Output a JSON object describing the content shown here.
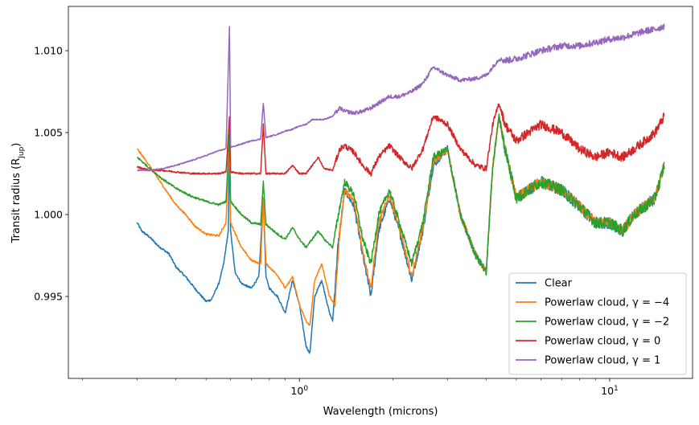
{
  "chart_data": {
    "type": "line",
    "xlabel": "Wavelength (microns)",
    "ylabel_main": "Transit radius (R",
    "ylabel_sub": "Jup",
    "ylabel_close": ")",
    "xscale": "log",
    "xlim": [
      0.18,
      18.5
    ],
    "ylim": [
      0.99,
      1.0127
    ],
    "x_tick_labels": [
      {
        "value": 1,
        "base": "10",
        "exp": "0"
      },
      {
        "value": 10,
        "base": "10",
        "exp": "1"
      }
    ],
    "y_ticks": [
      0.995,
      1.0,
      1.005,
      1.01
    ],
    "y_tick_labels": [
      "0.995",
      "1.000",
      "1.005",
      "1.010"
    ],
    "grid": false,
    "legend_position": "bottom-right",
    "series": [
      {
        "name": "Clear",
        "color": "#1f77b4",
        "noise": 0.00018,
        "points": [
          [
            0.3,
            0.9995
          ],
          [
            0.31,
            0.999
          ],
          [
            0.33,
            0.9986
          ],
          [
            0.35,
            0.9981
          ],
          [
            0.38,
            0.9976
          ],
          [
            0.4,
            0.9968
          ],
          [
            0.43,
            0.9962
          ],
          [
            0.46,
            0.9955
          ],
          [
            0.5,
            0.9947
          ],
          [
            0.52,
            0.9948
          ],
          [
            0.55,
            0.9958
          ],
          [
            0.57,
            0.997
          ],
          [
            0.59,
            0.999
          ],
          [
            0.595,
            1.004
          ],
          [
            0.6,
            0.999
          ],
          [
            0.62,
            0.9965
          ],
          [
            0.65,
            0.9958
          ],
          [
            0.7,
            0.9955
          ],
          [
            0.74,
            0.9962
          ],
          [
            0.765,
            1.001
          ],
          [
            0.78,
            0.9962
          ],
          [
            0.8,
            0.9955
          ],
          [
            0.85,
            0.995
          ],
          [
            0.9,
            0.994
          ],
          [
            0.95,
            0.996
          ],
          [
            1.0,
            0.9945
          ],
          [
            1.05,
            0.992
          ],
          [
            1.08,
            0.9915
          ],
          [
            1.12,
            0.995
          ],
          [
            1.18,
            0.996
          ],
          [
            1.25,
            0.994
          ],
          [
            1.28,
            0.9935
          ],
          [
            1.33,
            0.998
          ],
          [
            1.4,
            1.0015
          ],
          [
            1.5,
            1.0005
          ],
          [
            1.6,
            0.9975
          ],
          [
            1.7,
            0.995
          ],
          [
            1.8,
            0.999
          ],
          [
            1.95,
            1.001
          ],
          [
            2.1,
            0.999
          ],
          [
            2.3,
            0.996
          ],
          [
            2.5,
            0.999
          ],
          [
            2.7,
            1.003
          ],
          [
            3.0,
            1.004
          ],
          [
            3.3,
            1.0
          ],
          [
            3.7,
            0.9975
          ],
          [
            4.0,
            0.9965
          ],
          [
            4.2,
            1.003
          ],
          [
            4.4,
            1.006
          ],
          [
            4.6,
            1.004
          ],
          [
            5.0,
            1.001
          ],
          [
            6.0,
            1.002
          ],
          [
            7.0,
            1.0015
          ],
          [
            8.0,
            1.0005
          ],
          [
            9.0,
            0.9995
          ],
          [
            10.0,
            0.9995
          ],
          [
            11.0,
            0.999
          ],
          [
            12.0,
            1.0
          ],
          [
            13.0,
            1.0005
          ],
          [
            14.0,
            1.001
          ],
          [
            15.0,
            1.003
          ]
        ]
      },
      {
        "name": "Powerlaw cloud, γ = −4",
        "color": "#ff7f0e",
        "noise": 0.00016,
        "points": [
          [
            0.3,
            1.004
          ],
          [
            0.32,
            1.0033
          ],
          [
            0.35,
            1.0022
          ],
          [
            0.38,
            1.0012
          ],
          [
            0.4,
            1.0006
          ],
          [
            0.43,
            1.0
          ],
          [
            0.46,
            0.9993
          ],
          [
            0.5,
            0.9988
          ],
          [
            0.55,
            0.9987
          ],
          [
            0.58,
            0.9995
          ],
          [
            0.595,
            1.0045
          ],
          [
            0.6,
            0.9995
          ],
          [
            0.65,
            0.998
          ],
          [
            0.7,
            0.9972
          ],
          [
            0.75,
            0.997
          ],
          [
            0.765,
            1.001
          ],
          [
            0.78,
            0.997
          ],
          [
            0.85,
            0.9963
          ],
          [
            0.9,
            0.9955
          ],
          [
            0.95,
            0.9962
          ],
          [
            1.0,
            0.9945
          ],
          [
            1.05,
            0.9935
          ],
          [
            1.08,
            0.9932
          ],
          [
            1.12,
            0.996
          ],
          [
            1.18,
            0.997
          ],
          [
            1.25,
            0.995
          ],
          [
            1.3,
            0.9945
          ],
          [
            1.35,
            0.999
          ],
          [
            1.4,
            1.0015
          ],
          [
            1.5,
            1.0008
          ],
          [
            1.6,
            0.9978
          ],
          [
            1.7,
            0.9955
          ],
          [
            1.8,
            0.9995
          ],
          [
            1.95,
            1.0012
          ],
          [
            2.1,
            0.9992
          ],
          [
            2.3,
            0.9962
          ],
          [
            2.5,
            0.9992
          ],
          [
            2.7,
            1.0032
          ],
          [
            3.0,
            1.004
          ],
          [
            3.3,
            1.0
          ],
          [
            3.7,
            0.9975
          ],
          [
            4.0,
            0.9965
          ],
          [
            4.2,
            1.003
          ],
          [
            4.4,
            1.006
          ],
          [
            4.6,
            1.004
          ],
          [
            5.0,
            1.001
          ],
          [
            6.0,
            1.002
          ],
          [
            7.0,
            1.0015
          ],
          [
            8.0,
            1.0005
          ],
          [
            9.0,
            0.9995
          ],
          [
            10.0,
            0.9995
          ],
          [
            11.0,
            0.999
          ],
          [
            12.0,
            1.0
          ],
          [
            13.0,
            1.0005
          ],
          [
            14.0,
            1.001
          ],
          [
            15.0,
            1.003
          ]
        ]
      },
      {
        "name": "Powerlaw cloud, γ = −2",
        "color": "#2ca02c",
        "noise": 0.00018,
        "points": [
          [
            0.3,
            1.0035
          ],
          [
            0.33,
            1.0028
          ],
          [
            0.36,
            1.0022
          ],
          [
            0.4,
            1.0016
          ],
          [
            0.45,
            1.0011
          ],
          [
            0.5,
            1.0008
          ],
          [
            0.55,
            1.0006
          ],
          [
            0.58,
            1.0008
          ],
          [
            0.595,
            1.005
          ],
          [
            0.6,
            1.0008
          ],
          [
            0.65,
            1.0
          ],
          [
            0.7,
            0.9995
          ],
          [
            0.75,
            0.9994
          ],
          [
            0.765,
            1.002
          ],
          [
            0.78,
            0.9994
          ],
          [
            0.85,
            0.9988
          ],
          [
            0.9,
            0.9985
          ],
          [
            0.95,
            0.9992
          ],
          [
            1.0,
            0.9985
          ],
          [
            1.05,
            0.998
          ],
          [
            1.1,
            0.9985
          ],
          [
            1.15,
            0.999
          ],
          [
            1.2,
            0.9985
          ],
          [
            1.28,
            0.998
          ],
          [
            1.35,
            1.0005
          ],
          [
            1.4,
            1.002
          ],
          [
            1.5,
            1.0012
          ],
          [
            1.6,
            0.9985
          ],
          [
            1.7,
            0.997
          ],
          [
            1.8,
            1.0
          ],
          [
            1.95,
            1.0015
          ],
          [
            2.1,
            0.9995
          ],
          [
            2.3,
            0.997
          ],
          [
            2.5,
            0.9995
          ],
          [
            2.7,
            1.0035
          ],
          [
            3.0,
            1.004
          ],
          [
            3.3,
            1.0
          ],
          [
            3.7,
            0.9975
          ],
          [
            4.0,
            0.9965
          ],
          [
            4.2,
            1.003
          ],
          [
            4.4,
            1.006
          ],
          [
            4.6,
            1.004
          ],
          [
            5.0,
            1.001
          ],
          [
            6.0,
            1.002
          ],
          [
            7.0,
            1.0015
          ],
          [
            8.0,
            1.0005
          ],
          [
            9.0,
            0.9995
          ],
          [
            10.0,
            0.9995
          ],
          [
            11.0,
            0.999
          ],
          [
            12.0,
            1.0
          ],
          [
            13.0,
            1.0005
          ],
          [
            14.0,
            1.001
          ],
          [
            15.0,
            1.003
          ]
        ]
      },
      {
        "name": "Powerlaw cloud, γ = 0",
        "color": "#d62728",
        "noise": 0.00014,
        "points": [
          [
            0.3,
            1.0029
          ],
          [
            0.33,
            1.0027
          ],
          [
            0.36,
            1.0027
          ],
          [
            0.4,
            1.0026
          ],
          [
            0.45,
            1.0025
          ],
          [
            0.5,
            1.0025
          ],
          [
            0.55,
            1.0025
          ],
          [
            0.58,
            1.0026
          ],
          [
            0.595,
            1.006
          ],
          [
            0.6,
            1.0026
          ],
          [
            0.65,
            1.0025
          ],
          [
            0.7,
            1.0025
          ],
          [
            0.75,
            1.0025
          ],
          [
            0.765,
            1.0055
          ],
          [
            0.78,
            1.0025
          ],
          [
            0.85,
            1.0025
          ],
          [
            0.9,
            1.0025
          ],
          [
            0.95,
            1.003
          ],
          [
            1.0,
            1.0025
          ],
          [
            1.05,
            1.0025
          ],
          [
            1.1,
            1.003
          ],
          [
            1.15,
            1.0035
          ],
          [
            1.2,
            1.0028
          ],
          [
            1.28,
            1.0027
          ],
          [
            1.35,
            1.004
          ],
          [
            1.4,
            1.0042
          ],
          [
            1.5,
            1.0038
          ],
          [
            1.6,
            1.003
          ],
          [
            1.7,
            1.0025
          ],
          [
            1.8,
            1.0035
          ],
          [
            1.95,
            1.0042
          ],
          [
            2.1,
            1.0035
          ],
          [
            2.3,
            1.0028
          ],
          [
            2.5,
            1.004
          ],
          [
            2.7,
            1.006
          ],
          [
            3.0,
            1.0055
          ],
          [
            3.3,
            1.004
          ],
          [
            3.7,
            1.003
          ],
          [
            4.0,
            1.0028
          ],
          [
            4.2,
            1.0055
          ],
          [
            4.4,
            1.0068
          ],
          [
            4.6,
            1.0055
          ],
          [
            5.0,
            1.0045
          ],
          [
            6.0,
            1.0055
          ],
          [
            7.0,
            1.005
          ],
          [
            8.0,
            1.004
          ],
          [
            9.0,
            1.0035
          ],
          [
            10.0,
            1.0038
          ],
          [
            11.0,
            1.0035
          ],
          [
            12.0,
            1.004
          ],
          [
            13.0,
            1.0045
          ],
          [
            14.0,
            1.005
          ],
          [
            15.0,
            1.006
          ]
        ]
      },
      {
        "name": "Powerlaw cloud, γ = 1",
        "color": "#9467bd",
        "noise": 0.0001,
        "points": [
          [
            0.3,
            1.0027
          ],
          [
            0.33,
            1.0027
          ],
          [
            0.36,
            1.0028
          ],
          [
            0.4,
            1.003
          ],
          [
            0.45,
            1.0033
          ],
          [
            0.5,
            1.0036
          ],
          [
            0.55,
            1.0039
          ],
          [
            0.58,
            1.004
          ],
          [
            0.595,
            1.0115
          ],
          [
            0.6,
            1.0041
          ],
          [
            0.65,
            1.0043
          ],
          [
            0.7,
            1.0045
          ],
          [
            0.75,
            1.0046
          ],
          [
            0.765,
            1.0068
          ],
          [
            0.78,
            1.0047
          ],
          [
            0.85,
            1.0049
          ],
          [
            0.9,
            1.0051
          ],
          [
            0.95,
            1.0052
          ],
          [
            1.0,
            1.0054
          ],
          [
            1.05,
            1.0055
          ],
          [
            1.1,
            1.0058
          ],
          [
            1.15,
            1.0058
          ],
          [
            1.2,
            1.0058
          ],
          [
            1.28,
            1.006
          ],
          [
            1.35,
            1.0065
          ],
          [
            1.4,
            1.0063
          ],
          [
            1.5,
            1.0062
          ],
          [
            1.6,
            1.0063
          ],
          [
            1.7,
            1.0065
          ],
          [
            1.8,
            1.0068
          ],
          [
            1.95,
            1.0072
          ],
          [
            2.1,
            1.0072
          ],
          [
            2.3,
            1.0075
          ],
          [
            2.5,
            1.008
          ],
          [
            2.7,
            1.009
          ],
          [
            3.0,
            1.0085
          ],
          [
            3.3,
            1.0082
          ],
          [
            3.7,
            1.0083
          ],
          [
            4.0,
            1.0085
          ],
          [
            4.2,
            1.009
          ],
          [
            4.4,
            1.0095
          ],
          [
            4.6,
            1.0094
          ],
          [
            5.0,
            1.0095
          ],
          [
            6.0,
            1.01
          ],
          [
            7.0,
            1.0103
          ],
          [
            8.0,
            1.0103
          ],
          [
            9.0,
            1.0105
          ],
          [
            10.0,
            1.0107
          ],
          [
            11.0,
            1.0108
          ],
          [
            12.0,
            1.011
          ],
          [
            13.0,
            1.0112
          ],
          [
            14.0,
            1.0113
          ],
          [
            15.0,
            1.0115
          ]
        ]
      }
    ]
  }
}
